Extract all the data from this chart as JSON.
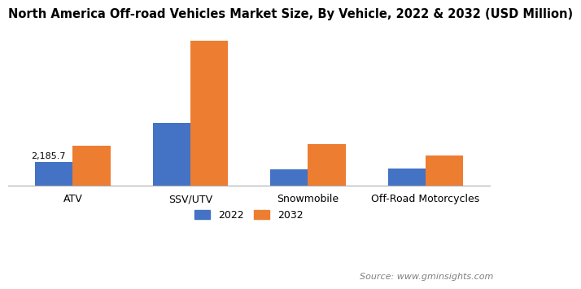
{
  "title": "North America Off-road Vehicles Market Size, By Vehicle, 2022 & 2032 (USD Million)",
  "categories": [
    "ATV",
    "SSV/UTV",
    "Snowmobile",
    "Off-Road Motorcycles"
  ],
  "values_2022": [
    2185.7,
    5800,
    1500,
    1600
  ],
  "values_2032": [
    3700,
    13500,
    3900,
    2800
  ],
  "color_2022": "#4472C4",
  "color_2032": "#ED7D31",
  "annotation_text": "2,185.7",
  "annotation_bar_index": 0,
  "source_text": "Source: www.gminsights.com",
  "legend_labels": [
    "2022",
    "2032"
  ],
  "bar_width": 0.32,
  "background_color": "#ffffff",
  "title_fontsize": 10.5,
  "axis_fontsize": 9,
  "legend_fontsize": 9,
  "source_fontsize": 8
}
